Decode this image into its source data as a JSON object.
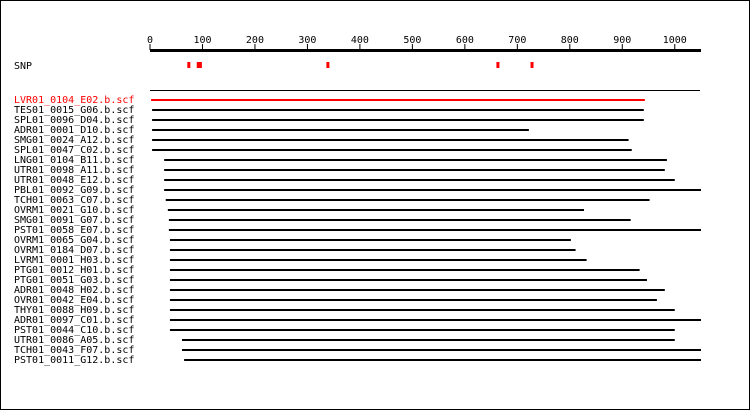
{
  "chart_data": {
    "type": "range",
    "xlim": [
      0,
      1050
    ],
    "xticks": [
      0,
      100,
      200,
      300,
      400,
      500,
      600,
      700,
      800,
      900,
      1000
    ],
    "snp": {
      "name": "SNP",
      "color": "#ff0000",
      "values": [
        74,
        92,
        96,
        339,
        663,
        728
      ]
    },
    "categories": [
      "LVR01_0104_E02.b.scf",
      "TES01_0015_G06.b.scf",
      "SPL01_0096_D04.b.scf",
      "ADR01_0001_D10.b.scf",
      "SMG01_0024_A12.b.scf",
      "SPL01_0047_C02.b.scf",
      "LNG01_0104_B11.b.scf",
      "UTR01_0098_A11.b.scf",
      "UTR01_0048_E12.b.scf",
      "PBL01_0092_G09.b.scf",
      "TCH01_0063_C07.b.scf",
      "OVRM1_0021_G10.b.scf",
      "SMG01_0091_G07.b.scf",
      "PST01_0058_E07.b.scf",
      "OVRM1_0065_G04.b.scf",
      "OVRM1_0184_D07.b.scf",
      "LVRM1_0001_H03.b.scf",
      "PTG01_0012_H01.b.scf",
      "PTG01_0051_G03.b.scf",
      "ADR01_0048_H02.b.scf",
      "OVR01_0042_E04.b.scf",
      "THY01_0088_H09.b.scf",
      "ADR01_0097_C01.b.scf",
      "PST01_0044_C10.b.scf",
      "UTR01_0086_A05.b.scf",
      "TCH01_0043_F07.b.scf",
      "PST01_0011_G12.b.scf"
    ],
    "starts": [
      2,
      4,
      4,
      4,
      4,
      4,
      27,
      27,
      27,
      27,
      30,
      34,
      36,
      36,
      38,
      38,
      38,
      38,
      38,
      38,
      38,
      38,
      38,
      38,
      61,
      61,
      65
    ],
    "ends": [
      943,
      941,
      941,
      722,
      912,
      918,
      985,
      981,
      1000,
      1050,
      952,
      827,
      916,
      1050,
      802,
      811,
      832,
      933,
      947,
      981,
      966,
      1000,
      1050,
      1000,
      1000,
      1050,
      1050
    ],
    "color": "#000000",
    "highlight": 0,
    "highlight_color": "#ff0000"
  }
}
